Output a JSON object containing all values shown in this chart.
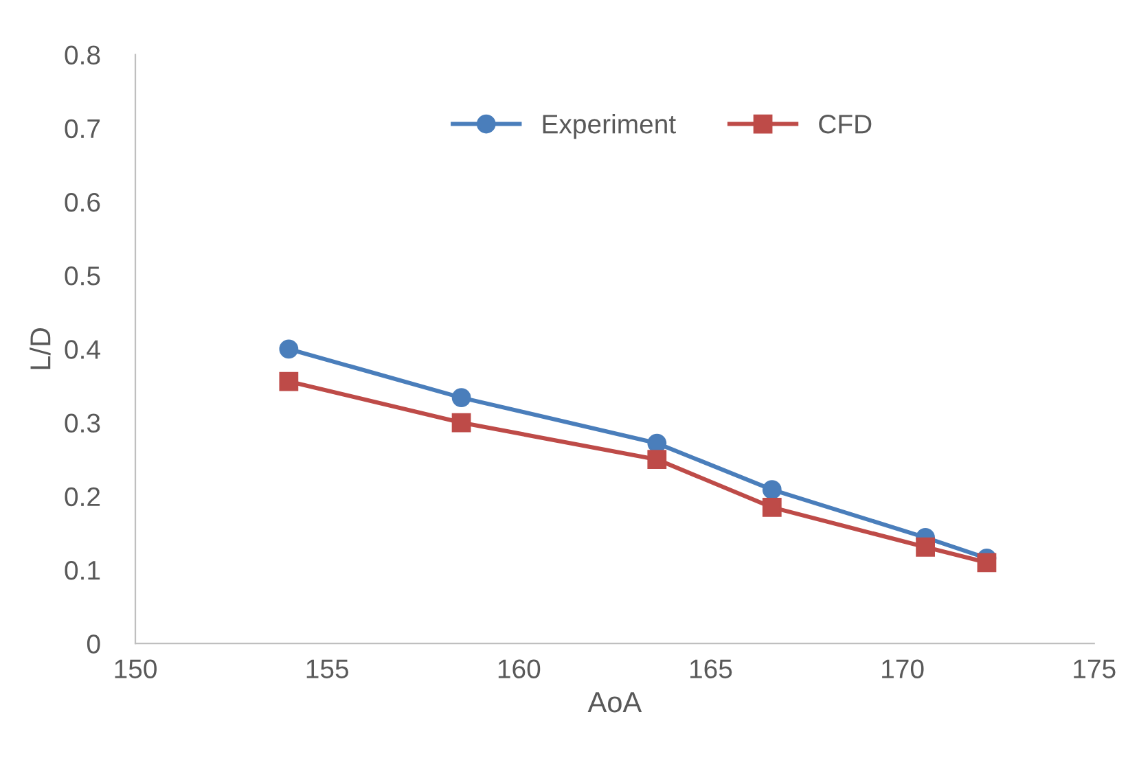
{
  "chart_data": {
    "type": "line",
    "xlabel": "AoA",
    "ylabel": "L/D",
    "xlim": [
      150,
      175
    ],
    "xticks": [
      150,
      155,
      160,
      165,
      170,
      175
    ],
    "ylim": [
      0,
      0.8
    ],
    "yticks": [
      0,
      0.1,
      0.2,
      0.3,
      0.4,
      0.5,
      0.6,
      0.7,
      0.8
    ],
    "series": [
      {
        "name": "Experiment",
        "color": "#4a7ebb",
        "marker": "circle",
        "x": [
          154.0,
          158.5,
          163.6,
          166.6,
          170.6,
          172.2
        ],
        "values": [
          0.4,
          0.334,
          0.272,
          0.209,
          0.144,
          0.116
        ]
      },
      {
        "name": "CFD",
        "color": "#be4b48",
        "marker": "square",
        "x": [
          154.0,
          158.5,
          163.6,
          166.6,
          170.6,
          172.2
        ],
        "values": [
          0.356,
          0.3,
          0.25,
          0.185,
          0.131,
          0.11
        ]
      }
    ],
    "legend": "top",
    "grid": false,
    "line_style": "solid"
  }
}
